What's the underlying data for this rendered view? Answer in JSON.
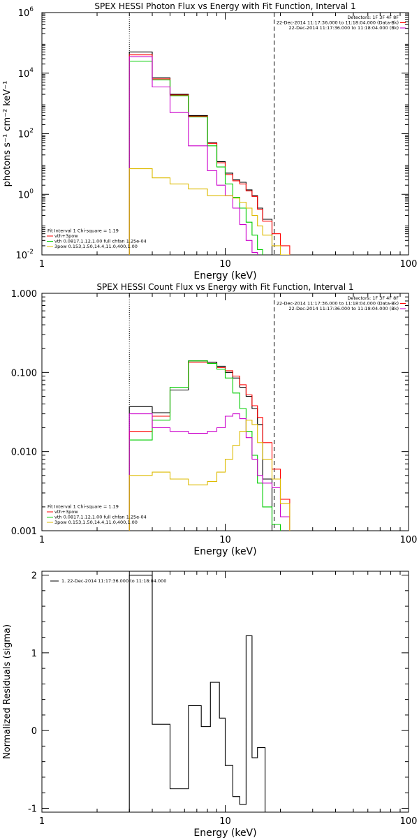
{
  "chart_data": [
    {
      "type": "line",
      "step": true,
      "title": "SPEX HESSI Photon Flux vs Energy with Fit Function, Interval 1",
      "xlabel": "Energy (keV)",
      "ylabel": "photons s⁻¹ cm⁻² keV⁻¹",
      "xscale": "log",
      "yscale": "log",
      "xlim": [
        1,
        100
      ],
      "ylim": [
        0.01,
        1000000
      ],
      "xticks": [
        {
          "v": 1,
          "label": "1"
        },
        {
          "v": 10,
          "label": "10"
        },
        {
          "v": 100,
          "label": "100"
        }
      ],
      "yticks": [
        {
          "v": 0.01,
          "label": "10",
          "sup": "-2"
        },
        {
          "v": 1,
          "label": "10",
          "sup": "0"
        },
        {
          "v": 100,
          "label": "10",
          "sup": "2"
        },
        {
          "v": 10000,
          "label": "10",
          "sup": "4"
        },
        {
          "v": 1000000,
          "label": "10",
          "sup": "6"
        }
      ],
      "vlines": [
        {
          "x": 3,
          "style": "dotted"
        },
        {
          "x": 18.5,
          "style": "dashed"
        }
      ],
      "legend_top_right": [
        "Detectors: 1F 3F 4F 8F",
        "22-Dec-2014 11:17:36.000 to 11:18:04.000 (Data-Bk)",
        "22-Dec-2014 11:17:36.000 to 11:18:04.000 (Bk)"
      ],
      "legend_bottom_left": [
        "Fit Interval 1    Chi-square = 1.19",
        "vth+3pow",
        "vth 0.0817,1.12,1.00  full chfan 1.25e-04",
        "3pow 0.153,1.50,14.4,11.0,400,1.00"
      ],
      "edges": [
        3,
        4,
        5,
        6.3,
        8,
        9,
        10,
        11,
        12,
        13,
        14,
        15,
        16,
        18,
        20,
        22.5
      ],
      "series": [
        {
          "color": "#000000",
          "values": [
            50000,
            7000,
            2000,
            400,
            50,
            12,
            5,
            3,
            2.5,
            1.4,
            0.9,
            0.35,
            0.15
          ]
        },
        {
          "color": "#ff0000",
          "values": [
            40000,
            6500,
            1900,
            380,
            48,
            11,
            4.5,
            2.8,
            2.2,
            1.3,
            0.85,
            0.32,
            0.13,
            0.05,
            0.02
          ]
        },
        {
          "color": "#00cc00",
          "values": [
            25000,
            6000,
            1800,
            360,
            40,
            8,
            2.2,
            0.8,
            0.35,
            0.12,
            0.045,
            0.015
          ]
        },
        {
          "color": "#cc00cc",
          "values": [
            35000,
            3500,
            500,
            40,
            6,
            2,
            0.9,
            0.35,
            0.1,
            0.03,
            0.012
          ]
        },
        {
          "color": "#ddbb00",
          "values": [
            7,
            3.5,
            2.2,
            1.5,
            0.9,
            0.9,
            0.9,
            0.75,
            0.55,
            0.35,
            0.2,
            0.09,
            0.045,
            0.02,
            0.01
          ]
        }
      ]
    },
    {
      "type": "line",
      "step": true,
      "title": "SPEX HESSI Count Flux vs Energy with Fit Function, Interval 1",
      "xlabel": "Energy (keV)",
      "ylabel": "",
      "xscale": "log",
      "yscale": "log",
      "xlim": [
        1,
        100
      ],
      "ylim": [
        0.001,
        1
      ],
      "xticks": [
        {
          "v": 1,
          "label": "1"
        },
        {
          "v": 10,
          "label": "10"
        },
        {
          "v": 100,
          "label": "100"
        }
      ],
      "yticks": [
        {
          "v": 0.001,
          "label": "0.001"
        },
        {
          "v": 0.01,
          "label": "0.010"
        },
        {
          "v": 0.1,
          "label": "0.100"
        },
        {
          "v": 1,
          "label": "1.000"
        }
      ],
      "vlines": [
        {
          "x": 3,
          "style": "dotted"
        },
        {
          "x": 18.5,
          "style": "dashed"
        }
      ],
      "legend_top_right": [
        "Detectors: 1F 3F 4F 8F",
        "22-Dec-2014 11:17:36.000 to 11:18:04.000 (Data-Bk)",
        "22-Dec-2014 11:17:36.000 to 11:18:04.000 (Bk)"
      ],
      "legend_bottom_left": [
        "Fit Interval 1    Chi-square = 1.19",
        "vth+3pow",
        "vth 0.0817,1.12,1.00  full chfan 1.25e-04",
        "3pow 0.153,1.50,14.4,11.0,400,1.00"
      ],
      "edges": [
        3,
        4,
        5,
        6.3,
        8,
        9,
        10,
        11,
        12,
        13,
        14,
        15,
        16,
        18,
        20,
        22.5
      ],
      "series": [
        {
          "color": "#000000",
          "values": [
            0.037,
            0.031,
            0.06,
            0.14,
            0.135,
            0.12,
            0.1,
            0.085,
            0.065,
            0.05,
            0.035,
            0.022,
            0.0045
          ]
        },
        {
          "color": "#ff0000",
          "values": [
            0.018,
            0.028,
            0.065,
            0.135,
            0.13,
            0.115,
            0.105,
            0.09,
            0.07,
            0.052,
            0.038,
            0.027,
            0.013,
            0.006,
            0.0025
          ]
        },
        {
          "color": "#00cc00",
          "values": [
            0.014,
            0.025,
            0.065,
            0.14,
            0.13,
            0.11,
            0.085,
            0.055,
            0.035,
            0.018,
            0.009,
            0.004,
            0.002,
            0.0012
          ]
        },
        {
          "color": "#cc00cc",
          "values": [
            0.03,
            0.02,
            0.018,
            0.017,
            0.018,
            0.02,
            0.028,
            0.03,
            0.026,
            0.015,
            0.008,
            0.005,
            0.004,
            0.0035,
            0.0015
          ]
        },
        {
          "color": "#ddbb00",
          "values": [
            0.005,
            0.0055,
            0.0045,
            0.0038,
            0.0042,
            0.0055,
            0.008,
            0.012,
            0.018,
            0.025,
            0.022,
            0.013,
            0.008,
            0.0045,
            0.0022
          ]
        }
      ]
    },
    {
      "type": "line",
      "step": true,
      "title": "",
      "xlabel": "Energy (keV)",
      "ylabel": "Normalized Residuals (sigma)",
      "xscale": "log",
      "yscale": "linear",
      "xlim": [
        1,
        100
      ],
      "ylim": [
        -1.05,
        2.05
      ],
      "xticks": [
        {
          "v": 1,
          "label": "1"
        },
        {
          "v": 10,
          "label": "10"
        },
        {
          "v": 100,
          "label": "100"
        }
      ],
      "yticks": [
        {
          "v": -1,
          "label": "-1"
        },
        {
          "v": 0,
          "label": "0"
        },
        {
          "v": 1,
          "label": "1"
        },
        {
          "v": 2,
          "label": "2"
        }
      ],
      "vlines": [],
      "legend_top_left": [
        "1. 22-Dec-2014 11:17:36.000 to 11:18:04.000"
      ],
      "edges": [
        3,
        4,
        5,
        6.3,
        7.4,
        8.3,
        9.3,
        10,
        11,
        12,
        13,
        14,
        15,
        16.5,
        18.5
      ],
      "series": [
        {
          "color": "#000000",
          "values": [
            2.0,
            0.08,
            -0.75,
            0.32,
            0.05,
            0.62,
            0.16,
            -0.45,
            -0.85,
            -0.95,
            1.22,
            -0.35,
            -0.22,
            -1.05
          ]
        }
      ]
    }
  ]
}
